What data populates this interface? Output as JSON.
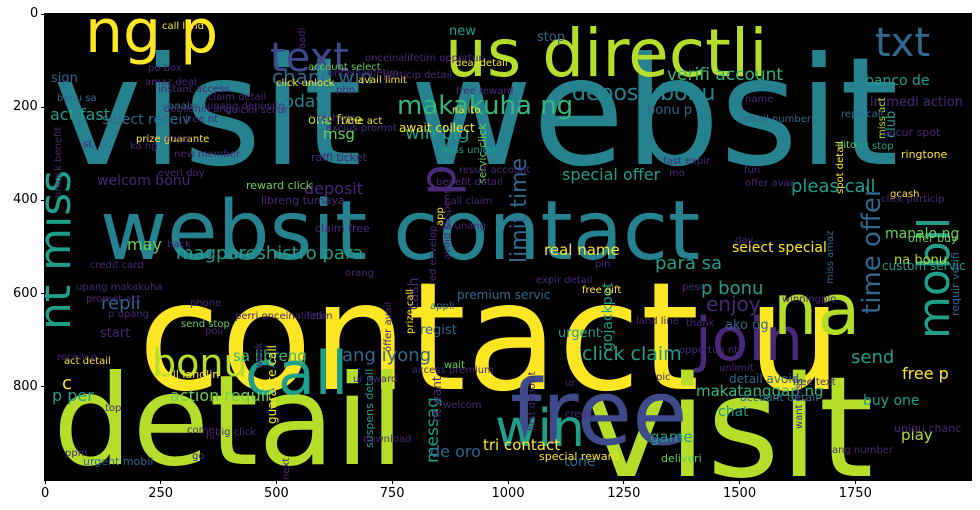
{
  "axes": {
    "x_ticks": [
      "0",
      "250",
      "500",
      "750",
      "1000",
      "1250",
      "1500",
      "1750"
    ],
    "y_ticks": [
      "0",
      "200",
      "400",
      "600",
      "800"
    ]
  },
  "palette": {
    "background": "#000000",
    "yellow": "#fde725",
    "lime": "#b5de2b",
    "green": "#6ece58",
    "teal_green": "#35b779",
    "teal": "#1f9e89",
    "blue_teal": "#26828e",
    "steel": "#31688e",
    "indigo": "#3e4a89",
    "purple": "#482878",
    "dark_purple": "#440154"
  },
  "words": [
    {
      "text": "visit websit",
      "color": "blue_teal"
    },
    {
      "text": "contact u",
      "color": "yellow"
    },
    {
      "text": "detail",
      "color": "lime"
    },
    {
      "text": "visit",
      "color": "lime"
    },
    {
      "text": "websit contact",
      "color": "blue_teal"
    },
    {
      "text": "us directli",
      "color": "lime"
    },
    {
      "text": "ng p",
      "color": "yellow"
    },
    {
      "text": "text",
      "color": "indigo"
    },
    {
      "text": "txt",
      "color": "steel"
    },
    {
      "text": "free",
      "color": "indigo"
    },
    {
      "text": "join",
      "color": "purple"
    },
    {
      "text": "na",
      "color": "lime"
    },
    {
      "text": "call",
      "color": "teal"
    },
    {
      "text": "bonu",
      "color": "lime"
    },
    {
      "text": "win",
      "color": "teal"
    },
    {
      "text": "mobil",
      "color": "teal"
    },
    {
      "text": "nt miss",
      "color": "teal"
    },
    {
      "text": "p",
      "color": "purple"
    },
    {
      "text": "limit time",
      "color": "steel"
    },
    {
      "text": "time offer",
      "color": "steel"
    },
    {
      "text": "makakuha ng",
      "color": "teal_green"
    },
    {
      "text": "deposit bonu",
      "color": "blue_teal"
    },
    {
      "text": "chanc win",
      "color": "steel"
    },
    {
      "text": "verifi account",
      "color": "teal_green"
    },
    {
      "text": "today",
      "color": "blue_teal"
    },
    {
      "text": "act fast",
      "color": "teal"
    },
    {
      "text": "win big",
      "color": "teal"
    },
    {
      "text": "special offer",
      "color": "teal"
    },
    {
      "text": "pleas call",
      "color": "teal"
    },
    {
      "text": "magpareshistro para",
      "color": "teal"
    },
    {
      "text": "repli",
      "color": "steel"
    },
    {
      "text": "may",
      "color": "green"
    },
    {
      "text": "real name",
      "color": "yellow"
    },
    {
      "text": "para sa",
      "color": "teal"
    },
    {
      "text": "p bonu",
      "color": "teal"
    },
    {
      "text": "enjoy",
      "color": "purple"
    },
    {
      "text": "click claim",
      "color": "teal"
    },
    {
      "text": "ang iyong",
      "color": "steel"
    },
    {
      "text": "send",
      "color": "teal"
    },
    {
      "text": "free p",
      "color": "yellow"
    },
    {
      "text": "sa libreng",
      "color": "teal_green"
    },
    {
      "text": "makatanggap ng",
      "color": "teal_green"
    },
    {
      "text": "messag",
      "color": "teal"
    },
    {
      "text": "action requir",
      "color": "green"
    },
    {
      "text": "p per",
      "color": "teal"
    },
    {
      "text": "c",
      "color": "yellow"
    },
    {
      "text": "tri contact",
      "color": "yellow"
    },
    {
      "text": "de oro",
      "color": "steel"
    },
    {
      "text": "game",
      "color": "teal"
    },
    {
      "text": "play",
      "color": "lime"
    },
    {
      "text": "chat",
      "color": "teal"
    },
    {
      "text": "tone",
      "color": "steel"
    },
    {
      "text": "buy one",
      "color": "teal"
    },
    {
      "text": "banco de",
      "color": "teal"
    },
    {
      "text": "immedi action",
      "color": "purple"
    },
    {
      "text": "msg",
      "color": "green"
    },
    {
      "text": "deposit",
      "color": "purple"
    },
    {
      "text": "welcom bonu",
      "color": "purple"
    },
    {
      "text": "select receiv",
      "color": "steel"
    },
    {
      "text": "one free",
      "color": "lime"
    },
    {
      "text": "sign",
      "color": "steel"
    },
    {
      "text": "new",
      "color": "teal"
    },
    {
      "text": "stop",
      "color": "steel"
    },
    {
      "text": "select special",
      "color": "yellow"
    },
    {
      "text": "manalo ng",
      "color": "green"
    },
    {
      "text": "na bonu",
      "color": "lime"
    },
    {
      "text": "gojackpot",
      "color": "teal"
    },
    {
      "text": "club",
      "color": "teal"
    },
    {
      "text": "regist",
      "color": "steel"
    },
    {
      "text": "cash",
      "color": "purple"
    },
    {
      "text": "urgent",
      "color": "teal"
    },
    {
      "text": "premium servic",
      "color": "steel"
    },
    {
      "text": "detail avoid",
      "color": "steel"
    },
    {
      "text": "custom servic",
      "color": "teal"
    },
    {
      "text": "start",
      "color": "purple"
    },
    {
      "text": "ako ng",
      "color": "steel"
    },
    {
      "text": "requir verifi",
      "color": "steel"
    },
    {
      "text": "offer buy",
      "color": "green"
    },
    {
      "text": "await collect",
      "color": "yellow"
    },
    {
      "text": "reward click",
      "color": "green"
    },
    {
      "text": "raffl ticket",
      "color": "purple"
    },
    {
      "text": "libreng tumaya",
      "color": "purple"
    },
    {
      "text": "claim free",
      "color": "purple"
    },
    {
      "text": "nt want",
      "color": "purple"
    },
    {
      "text": "account detail",
      "color": "steel"
    },
    {
      "text": "uniqu chanc",
      "color": "purple"
    },
    {
      "text": "deliveri",
      "color": "green"
    },
    {
      "text": "special reward",
      "color": "yellow"
    },
    {
      "text": "urgent mobil",
      "color": "steel"
    },
    {
      "text": "call landlin",
      "color": "yellow"
    },
    {
      "text": "act detail",
      "color": "yellow"
    },
    {
      "text": "promot act",
      "color": "purple"
    },
    {
      "text": "guarante call",
      "color": "yellow"
    },
    {
      "text": "suspens detail",
      "color": "teal"
    },
    {
      "text": "miss amaz",
      "color": "steel"
    },
    {
      "text": "spot detail",
      "color": "yellow"
    },
    {
      "text": "fast expir",
      "color": "purple"
    },
    {
      "text": "servic click",
      "color": "green"
    },
    {
      "text": "secur spot",
      "color": "purple"
    },
    {
      "text": "ringtone",
      "color": "yellow"
    },
    {
      "text": "txt stop",
      "color": "teal"
    },
    {
      "text": "miss act",
      "color": "lime"
    },
    {
      "text": "gcash",
      "color": "yellow"
    },
    {
      "text": "dito",
      "color": "green"
    },
    {
      "text": "repli call",
      "color": "steel"
    },
    {
      "text": "mobil number",
      "color": "steel"
    },
    {
      "text": "account select",
      "color": "green"
    },
    {
      "text": "click unlock",
      "color": "yellow"
    },
    {
      "text": "claim detail",
      "color": "purple"
    },
    {
      "text": "instant access",
      "color": "purple"
    },
    {
      "text": "dobilehin ang",
      "color": "purple"
    },
    {
      "text": "prize guarante",
      "color": "yellow"
    },
    {
      "text": "quickli secur",
      "color": "purple"
    },
    {
      "text": "unang deposito",
      "color": "purple"
    },
    {
      "text": "call land",
      "color": "yellow"
    },
    {
      "text": "po box",
      "color": "purple"
    },
    {
      "text": "panalo",
      "color": "steel"
    },
    {
      "text": "bonu sa",
      "color": "steel"
    },
    {
      "text": "avail limit",
      "color": "yellow"
    },
    {
      "text": "deal detail",
      "color": "yellow"
    },
    {
      "text": "particip detail",
      "color": "purple"
    },
    {
      "text": "time act",
      "color": "yellow"
    },
    {
      "text": "recharg",
      "color": "purple"
    },
    {
      "text": "na ito",
      "color": "yellow"
    },
    {
      "text": "free reward",
      "color": "purple"
    },
    {
      "text": "miss uniqu",
      "color": "teal"
    },
    {
      "text": "result account",
      "color": "purple"
    },
    {
      "text": "benefit detail",
      "color": "purple"
    },
    {
      "text": "call claim",
      "color": "purple"
    },
    {
      "text": "sa unang",
      "color": "purple"
    },
    {
      "text": "app",
      "color": "yellow"
    },
    {
      "text": "avoid suspens",
      "color": "purple"
    },
    {
      "text": "red envelop",
      "color": "purple"
    },
    {
      "text": "expir detail",
      "color": "purple"
    },
    {
      "text": "appli",
      "color": "steel"
    },
    {
      "text": "prize call",
      "color": "yellow"
    },
    {
      "text": "offer avail",
      "color": "purple"
    },
    {
      "text": "access premium",
      "color": "purple"
    },
    {
      "text": "wait",
      "color": "green"
    },
    {
      "text": "ur award",
      "color": "purple"
    },
    {
      "text": "week",
      "color": "purple"
    },
    {
      "text": "credit card",
      "color": "purple"
    },
    {
      "text": "upang makakuha",
      "color": "purple"
    },
    {
      "text": "p upang",
      "color": "purple"
    },
    {
      "text": "receiv p",
      "color": "purple"
    },
    {
      "text": "send stop",
      "color": "green"
    },
    {
      "text": "phone",
      "color": "purple"
    },
    {
      "text": "back",
      "color": "purple"
    },
    {
      "text": "day",
      "color": "purple"
    },
    {
      "text": "peso",
      "color": "purple"
    },
    {
      "text": "free gift",
      "color": "yellow"
    },
    {
      "text": "winningplo",
      "color": "purple"
    },
    {
      "text": "land line",
      "color": "purple"
    },
    {
      "text": "opportun nt",
      "color": "purple"
    },
    {
      "text": "unlimit",
      "color": "purple"
    },
    {
      "text": "pic",
      "color": "purple"
    },
    {
      "text": "welcom",
      "color": "purple"
    },
    {
      "text": "first deposit",
      "color": "purple"
    },
    {
      "text": "credit",
      "color": "purple"
    },
    {
      "text": "ang number",
      "color": "purple"
    },
    {
      "text": "want miss",
      "color": "purple"
    },
    {
      "text": "top",
      "color": "purple"
    },
    {
      "text": "come",
      "color": "purple"
    },
    {
      "text": "big click",
      "color": "purple"
    },
    {
      "text": "hi",
      "color": "purple"
    },
    {
      "text": "download",
      "color": "purple"
    },
    {
      "text": "next",
      "color": "purple"
    },
    {
      "text": "go",
      "color": "purple"
    },
    {
      "text": "ppm",
      "color": "purple"
    },
    {
      "text": "exclus promot",
      "color": "purple"
    },
    {
      "text": "new member",
      "color": "purple"
    },
    {
      "text": "everi day",
      "color": "purple"
    },
    {
      "text": "enter",
      "color": "purple"
    },
    {
      "text": "ka ng",
      "color": "purple"
    },
    {
      "text": "st",
      "color": "purple"
    },
    {
      "text": "unlock benefit",
      "color": "purple"
    },
    {
      "text": "free nt",
      "color": "purple"
    },
    {
      "text": "offer avail",
      "color": "purple"
    },
    {
      "text": "fun",
      "color": "purple"
    },
    {
      "text": "name",
      "color": "purple"
    },
    {
      "text": "php",
      "color": "purple"
    },
    {
      "text": "onceinalifetim",
      "color": "purple"
    },
    {
      "text": "onceinalifetim opportun",
      "color": "purple"
    },
    {
      "text": "perri onceinalifetim",
      "color": "purple"
    },
    {
      "text": "orang",
      "color": "purple"
    },
    {
      "text": "link",
      "color": "purple"
    },
    {
      "text": "thank",
      "color": "purple"
    },
    {
      "text": "pin",
      "color": "purple"
    },
    {
      "text": "poli",
      "color": "purple"
    },
    {
      "text": "amaz deal",
      "color": "purple"
    },
    {
      "text": "mo",
      "color": "purple"
    },
    {
      "text": "click particip",
      "color": "purple"
    },
    {
      "text": "free text",
      "color": "purple"
    },
    {
      "text": "ur",
      "color": "purple"
    },
    {
      "text": "aadi",
      "color": "purple"
    },
    {
      "text": "bonu p",
      "color": "steel"
    }
  ]
}
